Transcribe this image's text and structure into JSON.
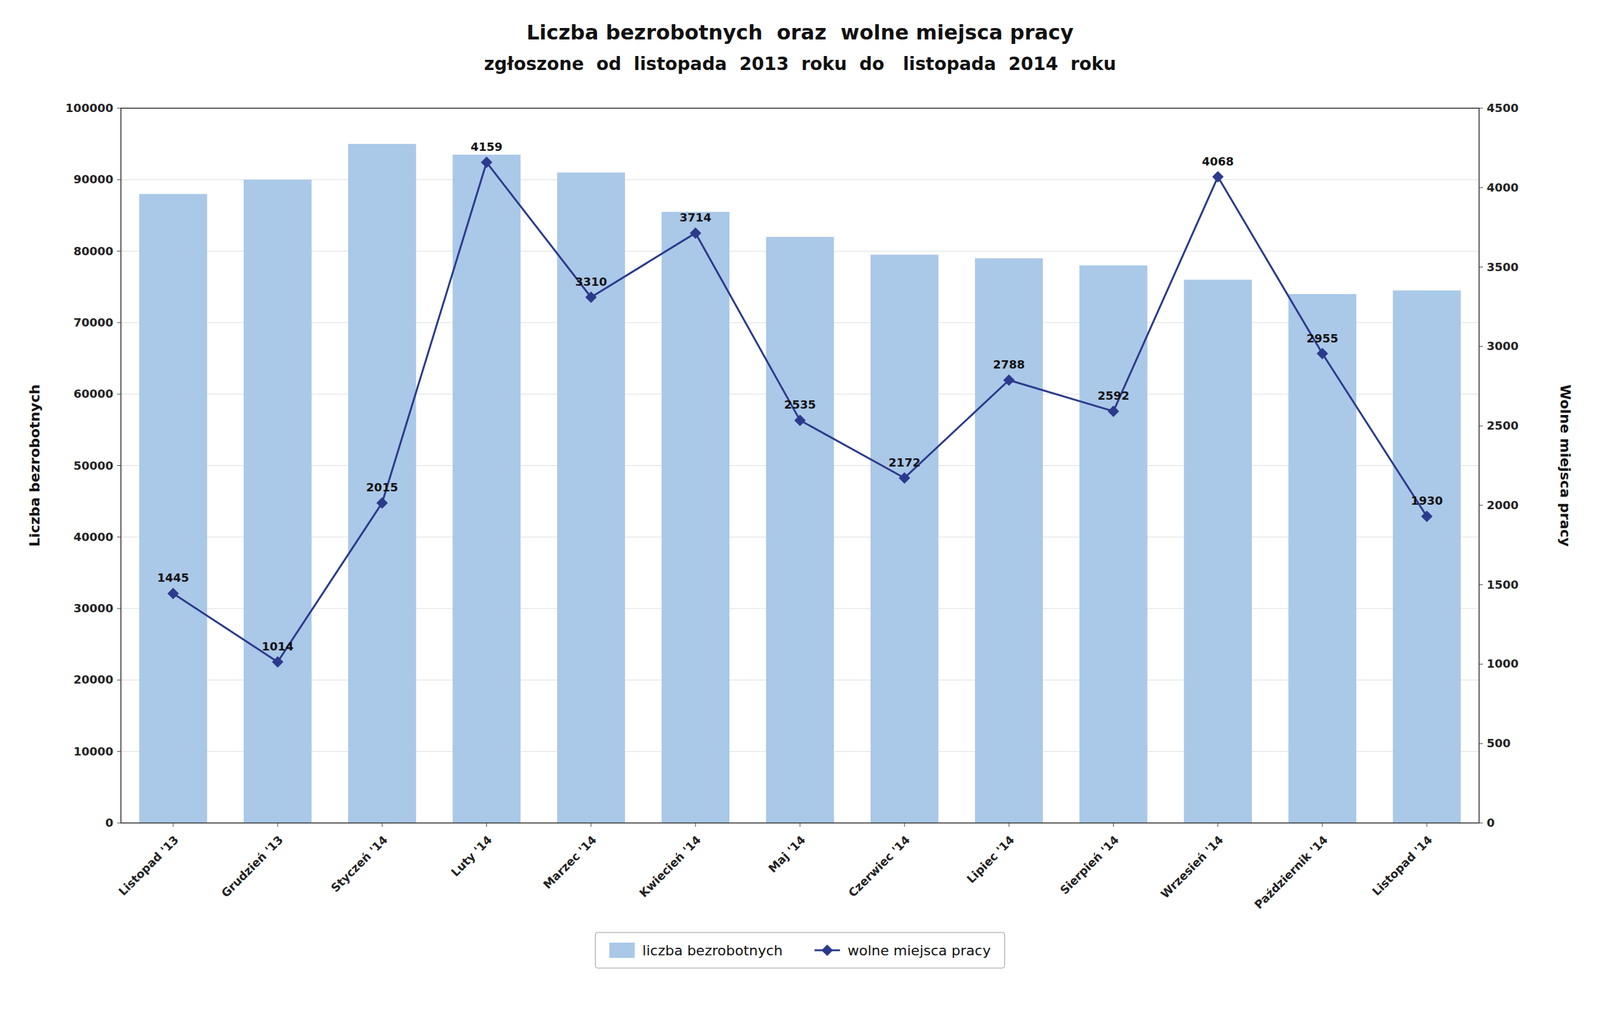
{
  "chart_data": {
    "type": "bar",
    "title": "Liczba bezrobotnych  oraz  wolne miejsca pracy",
    "subtitle": "zgłoszone  od  listopada  2013  roku  do   listopada  2014  roku",
    "categories": [
      "Listopad '13",
      "Grudzień '13",
      "Styczeń '14",
      "Luty '14",
      "Marzec '14",
      "Kwiecień '14",
      "Maj '14",
      "Czerwiec '14",
      "Lipiec '14",
      "Sierpień '14",
      "Wrzesień '14",
      "Październik '14",
      "Listopad '14"
    ],
    "series": [
      {
        "name": "liczba bezrobotnych",
        "type": "bar",
        "color": "#aac8e8",
        "values": [
          88000,
          90000,
          95000,
          93500,
          91000,
          85500,
          82000,
          79500,
          79000,
          78000,
          76000,
          74000,
          74500
        ]
      },
      {
        "name": "wolne miejsca pracy",
        "type": "line",
        "axis": "y2",
        "color": "#2b3a8c",
        "marker": "diamond",
        "line_style": "solid",
        "data_labels": true,
        "values": [
          1445,
          1014,
          2015,
          4159,
          3310,
          3714,
          2535,
          2172,
          2788,
          2592,
          4068,
          2955,
          1930
        ]
      }
    ],
    "ylabel": "Liczba bezrobotnych",
    "y2label": "Wolne miejsca pracy",
    "ylim": [
      0,
      100000
    ],
    "yticks": [
      0,
      10000,
      20000,
      30000,
      40000,
      50000,
      60000,
      70000,
      80000,
      90000,
      100000
    ],
    "y2lim": [
      0,
      4500
    ],
    "y2ticks": [
      0,
      500,
      1000,
      1500,
      2000,
      2500,
      3000,
      3500,
      4000,
      4500
    ],
    "grid": true,
    "legend": "bottom"
  }
}
